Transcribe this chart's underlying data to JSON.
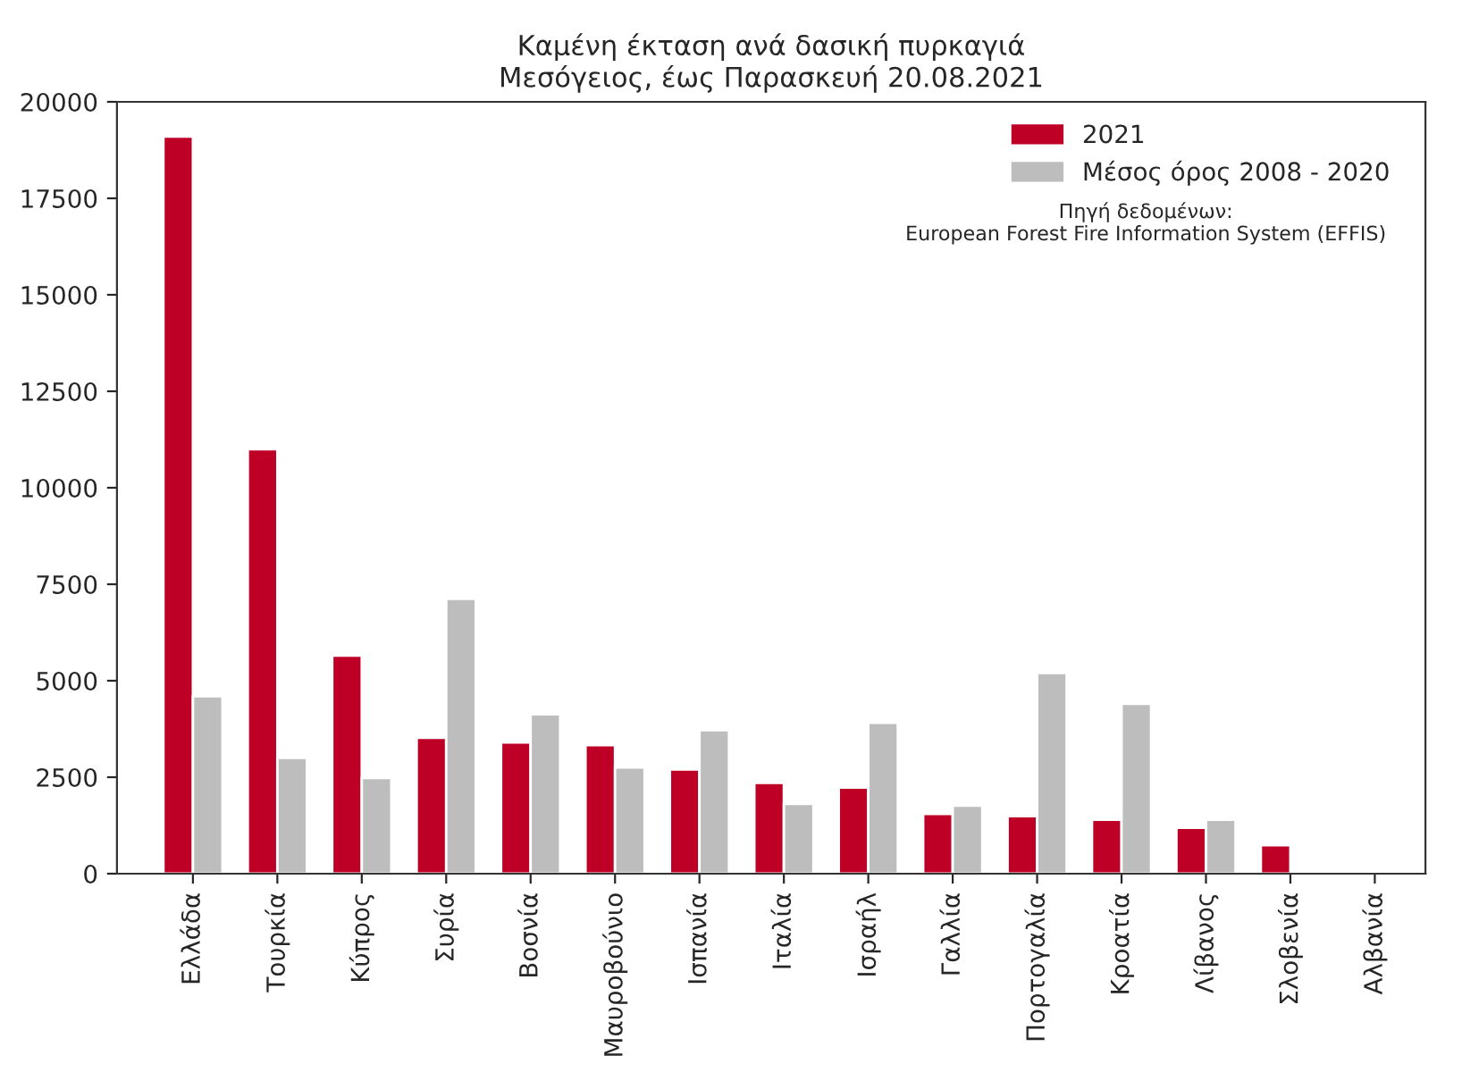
{
  "chart_data": {
    "type": "bar",
    "title": "Καμένη έκταση ανά δασική πυρκαγιά\nΜεσόγειος, έως Παρασκευή 20.08.2021",
    "categories": [
      "Ελλάδα",
      "Τουρκία",
      "Κύπρος",
      "Συρία",
      "Βοσνία",
      "Μαυροβούνιο",
      "Ισπανία",
      "Ιταλία",
      "Ισραήλ",
      "Γαλλία",
      "Πορτογαλία",
      "Κροατία",
      "Λίβανος",
      "Σλοβενία",
      "Αλβανία"
    ],
    "series": [
      {
        "name": "2021",
        "color": "#be0027",
        "values": [
          19100,
          11000,
          5650,
          3520,
          3400,
          3330,
          2700,
          2350,
          2230,
          1550,
          1490,
          1400,
          1190,
          740,
          null
        ]
      },
      {
        "name": "Μέσος όρος 2008 - 2020",
        "color": "#bdbdbd",
        "values": [
          4600,
          3000,
          2480,
          7120,
          4130,
          2750,
          3720,
          1810,
          3910,
          1760,
          5200,
          4400,
          1400,
          null,
          null
        ]
      }
    ],
    "ylim": [
      0,
      20000
    ],
    "yticks": [
      0,
      2500,
      5000,
      7500,
      10000,
      12500,
      15000,
      17500,
      20000
    ],
    "legend": "top right",
    "grid": false,
    "annotations": [
      "Πηγή δεδομένων:\nEuropean Forest Fire Information System (EFFIS)"
    ]
  }
}
